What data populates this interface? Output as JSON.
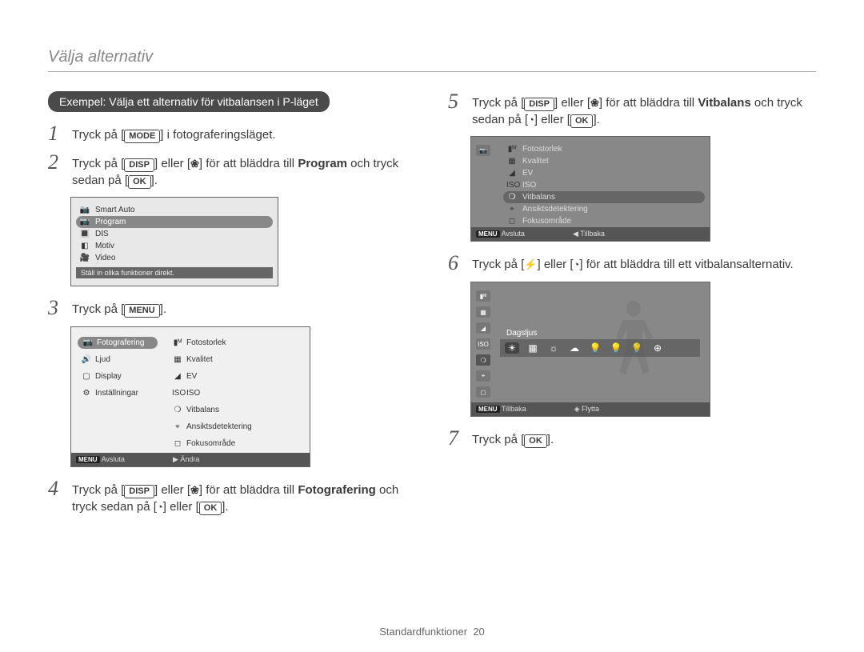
{
  "page": {
    "title": "Välja alternativ",
    "footer_label": "Standardfunktioner",
    "footer_page": "20"
  },
  "heading": "Exempel: Välja ett alternativ för vitbalansen i P-läget",
  "keys": {
    "mode": "MODE",
    "disp": "DISP",
    "menu": "MENU",
    "ok": "OK"
  },
  "steps": {
    "s1": {
      "num": "1",
      "pre": "Tryck på [",
      "post": "] i fotograferingsläget."
    },
    "s2": {
      "num": "2",
      "a": "Tryck på [",
      "b": "] eller [",
      "c": "] för att bläddra till ",
      "target": "Program",
      "d": " och tryck sedan på [",
      "e": "]."
    },
    "s3": {
      "num": "3",
      "a": "Tryck på [",
      "b": "]."
    },
    "s4": {
      "num": "4",
      "a": "Tryck på [",
      "b": "] eller [",
      "c": "] för att bläddra till ",
      "target": "Fotografering",
      "d": " och tryck sedan på [",
      "e": "] eller [",
      "f": "]."
    },
    "s5": {
      "num": "5",
      "a": "Tryck på [",
      "b": "] eller [",
      "c": "] för att bläddra till ",
      "target": "Vitbalans",
      "d": " och tryck sedan på [",
      "e": "] eller [",
      "f": "]."
    },
    "s6": {
      "num": "6",
      "a": "Tryck på [",
      "b": "] eller [",
      "c": "] för att bläddra till ett vitbalansalternativ."
    },
    "s7": {
      "num": "7",
      "a": "Tryck på [",
      "b": "]."
    }
  },
  "glyphs": {
    "flower": "❀",
    "timer": "◔",
    "flash": "⚡",
    "left": "◀",
    "right": "▶",
    "up": "▲",
    "down": "▼"
  },
  "screen1": {
    "items": [
      "Smart Auto",
      "Program",
      "DIS",
      "Motiv",
      "Video"
    ],
    "selected_index": 1,
    "hint": "Ställ in olika funktioner direkt.",
    "icons": [
      "📷",
      "📷",
      "🔳",
      "◧",
      "🎥"
    ]
  },
  "screen2": {
    "left": [
      {
        "icon": "📷",
        "label": "Fotografering",
        "sel": true
      },
      {
        "icon": "🔊",
        "label": "Ljud",
        "sel": false
      },
      {
        "icon": "▢",
        "label": "Display",
        "sel": false
      },
      {
        "icon": "⚙",
        "label": "Inställningar",
        "sel": false
      }
    ],
    "right": [
      {
        "icon": "▮ᴹ",
        "label": "Fotostorlek"
      },
      {
        "icon": "▦",
        "label": "Kvalitet"
      },
      {
        "icon": "◢",
        "label": "EV"
      },
      {
        "icon": "ISO",
        "label": "ISO"
      },
      {
        "icon": "❍",
        "label": "Vitbalans"
      },
      {
        "icon": "⌖",
        "label": "Ansiktsdetektering"
      },
      {
        "icon": "◻",
        "label": "Fokusområde"
      }
    ],
    "footer": {
      "left_key": "MENU",
      "left": "Avsluta",
      "right_glyph": "▶",
      "right": "Ändra"
    }
  },
  "screen3": {
    "items": [
      {
        "icon": "▮ᴹ",
        "label": "Fotostorlek"
      },
      {
        "icon": "▦",
        "label": "Kvalitet"
      },
      {
        "icon": "◢",
        "label": "EV"
      },
      {
        "icon": "ISO",
        "label": "ISO"
      },
      {
        "icon": "❍",
        "label": "Vitbalans",
        "sel": true
      },
      {
        "icon": "⌖",
        "label": "Ansiktsdetektering"
      },
      {
        "icon": "◻",
        "label": "Fokusområde"
      }
    ],
    "footer": {
      "left_key": "MENU",
      "left": "Avsluta",
      "right_glyph": "◀",
      "right": "Tillbaka"
    }
  },
  "screen4": {
    "label": "Dagsljus",
    "strip": [
      "☀",
      "▦",
      "☼",
      "☁",
      "💡",
      "💡",
      "💡",
      "⊕"
    ],
    "footer": {
      "left_key": "MENU",
      "left": "Tillbaka",
      "right_glyph": "◈",
      "right": "Flytta"
    }
  },
  "colors": {
    "text": "#3a3a3a",
    "muted": "#888888",
    "badge_bg": "#4a4a4a",
    "screen_bg": "#e8e8e8",
    "screen_dark": "#888888",
    "footer_bg": "#555555",
    "sel_bg": "#888888"
  }
}
